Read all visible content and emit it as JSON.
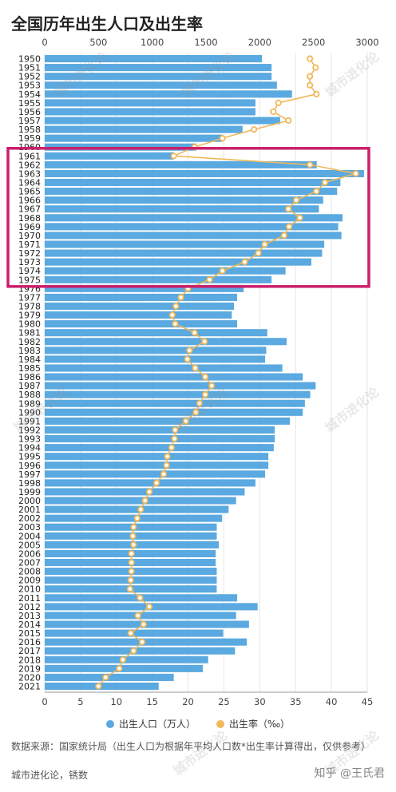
{
  "title": "全国历年出生人口及出生率",
  "chart_data": {
    "type": "bar+line",
    "top_axis": {
      "min": 0,
      "max": 3000,
      "ticks": [
        0,
        500,
        1000,
        1500,
        2000,
        2500,
        3000
      ]
    },
    "bottom_axis": {
      "min": 0,
      "max": 45,
      "ticks": [
        0,
        5,
        10,
        15,
        20,
        25,
        30,
        35,
        40,
        45
      ]
    },
    "years": [
      "1950",
      "1951",
      "1952",
      "1953",
      "1954",
      "1955",
      "1956",
      "1957",
      "1958",
      "1959",
      "1960",
      "1961",
      "1962",
      "1963",
      "1964",
      "1965",
      "1966",
      "1967",
      "1968",
      "1969",
      "1970",
      "1971",
      "1972",
      "1973",
      "1974",
      "1975",
      "1976",
      "1977",
      "1978",
      "1979",
      "1980",
      "1981",
      "1982",
      "1983",
      "1984",
      "1985",
      "1986",
      "1987",
      "1988",
      "1989",
      "1990",
      "1991",
      "1992",
      "1993",
      "1994",
      "1995",
      "1996",
      "1997",
      "1998",
      "1999",
      "2000",
      "2001",
      "2002",
      "2003",
      "2004",
      "2005",
      "2006",
      "2007",
      "2008",
      "2009",
      "2010",
      "2011",
      "2012",
      "2013",
      "2014",
      "2015",
      "2016",
      "2017",
      "2018",
      "2019",
      "2020",
      "2021"
    ],
    "series": [
      {
        "name": "出生人口（万人）",
        "color": "#5aa9e0",
        "values": [
          2020,
          2110,
          2110,
          2160,
          2300,
          1960,
          1960,
          2190,
          1840,
          1650,
          1410,
          1200,
          2530,
          2970,
          2750,
          2720,
          2590,
          2550,
          2770,
          2730,
          2760,
          2600,
          2580,
          2480,
          2240,
          2110,
          1850,
          1790,
          1760,
          1740,
          1790,
          2070,
          2250,
          2060,
          2050,
          2210,
          2400,
          2520,
          2470,
          2420,
          2400,
          2280,
          2140,
          2140,
          2130,
          2080,
          2080,
          2050,
          1960,
          1860,
          1780,
          1710,
          1650,
          1600,
          1600,
          1620,
          1590,
          1590,
          1600,
          1600,
          1600,
          1790,
          1980,
          1780,
          1900,
          1660,
          1880,
          1770,
          1520,
          1470,
          1200,
          1060
        ]
      },
      {
        "name": "出生率（‰）",
        "color": "#f0b85a",
        "values": [
          37.0,
          37.8,
          37.0,
          37.0,
          37.9,
          32.6,
          31.9,
          34.0,
          29.2,
          24.8,
          20.9,
          18.0,
          37.0,
          43.4,
          39.1,
          37.9,
          35.1,
          34.0,
          35.6,
          34.1,
          33.4,
          30.7,
          29.8,
          27.9,
          24.8,
          23.0,
          20.0,
          19.0,
          18.3,
          17.8,
          18.2,
          20.9,
          22.3,
          20.2,
          19.9,
          21.0,
          22.4,
          23.3,
          22.4,
          21.6,
          21.1,
          19.7,
          18.2,
          18.1,
          17.7,
          17.1,
          17.0,
          16.6,
          15.6,
          14.6,
          14.0,
          13.4,
          12.9,
          12.4,
          12.3,
          12.4,
          12.1,
          12.1,
          12.1,
          12.0,
          11.9,
          13.3,
          14.6,
          13.0,
          13.8,
          12.0,
          13.6,
          12.4,
          10.9,
          10.4,
          8.5,
          7.5
        ]
      }
    ],
    "legend_position": "bottom",
    "highlight_years": [
      "1961",
      "1975"
    ],
    "highlight_color": "#cc1f6b"
  },
  "legend": {
    "births_label": "出生人口（万人）",
    "rate_label": "出生率（‰）",
    "births_color": "#5aa9e0",
    "rate_color": "#f0b85a"
  },
  "footer": {
    "source": "数据来源：国家统计局（出生人口为根据年平均人口数*出生率计算得出，仅供参考）",
    "credit": "城市进化论，锈数",
    "platform": "知乎 @王氏君"
  },
  "watermark": "城市进化论"
}
